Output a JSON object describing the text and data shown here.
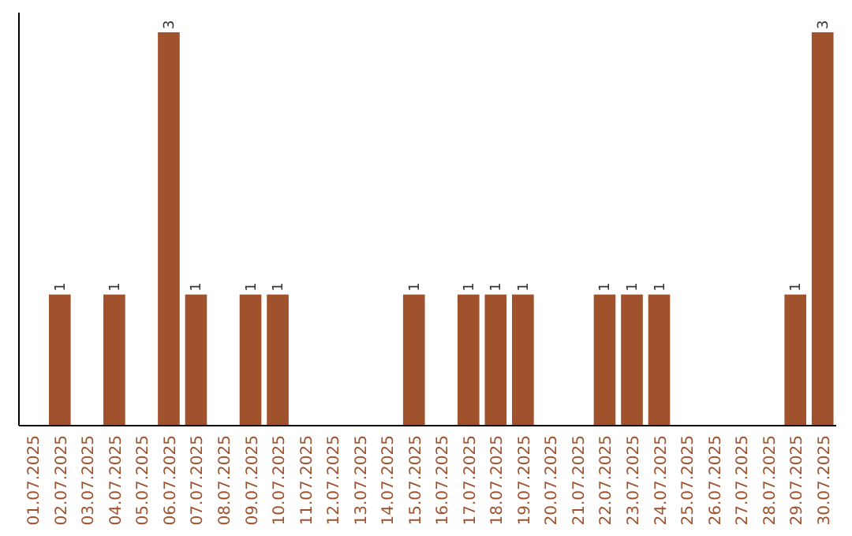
{
  "chart_data": {
    "type": "bar",
    "categories": [
      "01.07.2025",
      "02.07.2025",
      "03.07.2025",
      "04.07.2025",
      "05.07.2025",
      "06.07.2025",
      "07.07.2025",
      "08.07.2025",
      "09.07.2025",
      "10.07.2025",
      "11.07.2025",
      "12.07.2025",
      "13.07.2025",
      "14.07.2025",
      "15.07.2025",
      "16.07.2025",
      "17.07.2025",
      "18.07.2025",
      "19.07.2025",
      "20.07.2025",
      "21.07.2025",
      "22.07.2025",
      "23.07.2025",
      "24.07.2025",
      "25.07.2025",
      "26.07.2025",
      "27.07.2025",
      "28.07.2025",
      "29.07.2025",
      "30.07.2025"
    ],
    "values": [
      0,
      1,
      0,
      1,
      0,
      3,
      1,
      0,
      1,
      1,
      0,
      0,
      0,
      0,
      1,
      0,
      1,
      1,
      1,
      0,
      0,
      1,
      1,
      1,
      0,
      0,
      0,
      0,
      1,
      3
    ],
    "value_labels": [
      null,
      "1",
      null,
      "1",
      null,
      "3",
      "1",
      null,
      "1",
      "1",
      null,
      null,
      null,
      null,
      "1",
      null,
      "1",
      "1",
      "1",
      null,
      null,
      "1",
      "1",
      "1",
      null,
      null,
      null,
      null,
      "1",
      "3"
    ],
    "color": "#a0522d",
    "ylim": [
      0,
      3.15
    ],
    "tick_labels": "x"
  }
}
